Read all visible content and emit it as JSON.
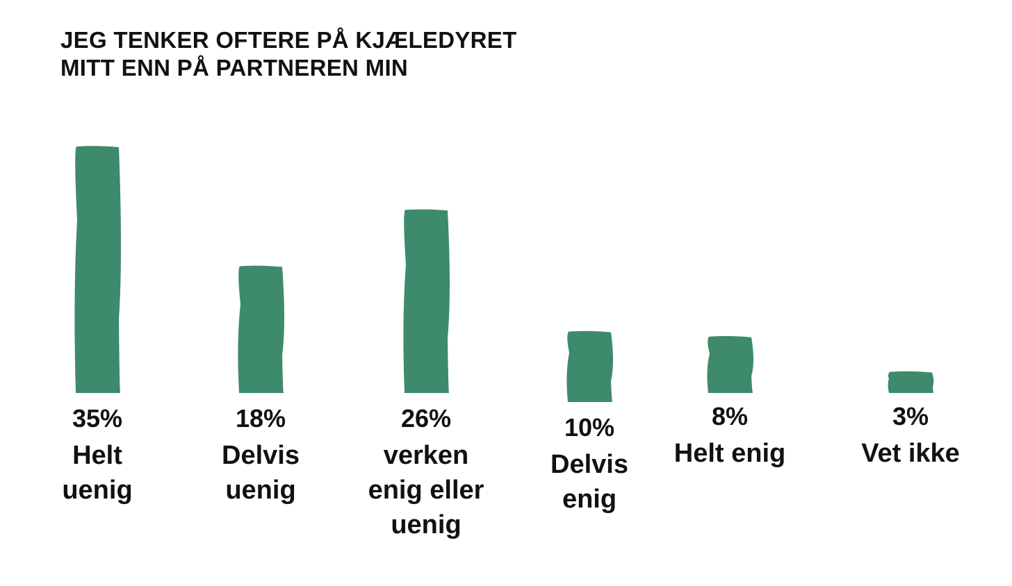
{
  "chart_data": {
    "type": "bar",
    "title": "JEG TENKER OFTERE PÅ KJÆLEDYRET MITT ENN PÅ PARTNEREN MIN",
    "title_lines": [
      "JEG TENKER OFTERE PÅ KJÆLEDYRET",
      "MITT ENN PÅ PARTNEREN MIN"
    ],
    "categories": [
      [
        "Helt",
        "uenig"
      ],
      [
        "Delvis",
        "uenig"
      ],
      [
        "verken",
        "enig eller",
        "uenig"
      ],
      [
        "Delvis",
        "enig"
      ],
      [
        "Helt enig"
      ],
      [
        "Vet ikke"
      ]
    ],
    "values": [
      35,
      18,
      26,
      10,
      8,
      3
    ],
    "value_labels": [
      "35%",
      "18%",
      "26%",
      "10%",
      "8%",
      "3%"
    ],
    "unit": "%",
    "bar_color": "#3d8a6d",
    "grid": false,
    "legend": "none",
    "ylim": [
      0,
      35
    ]
  }
}
